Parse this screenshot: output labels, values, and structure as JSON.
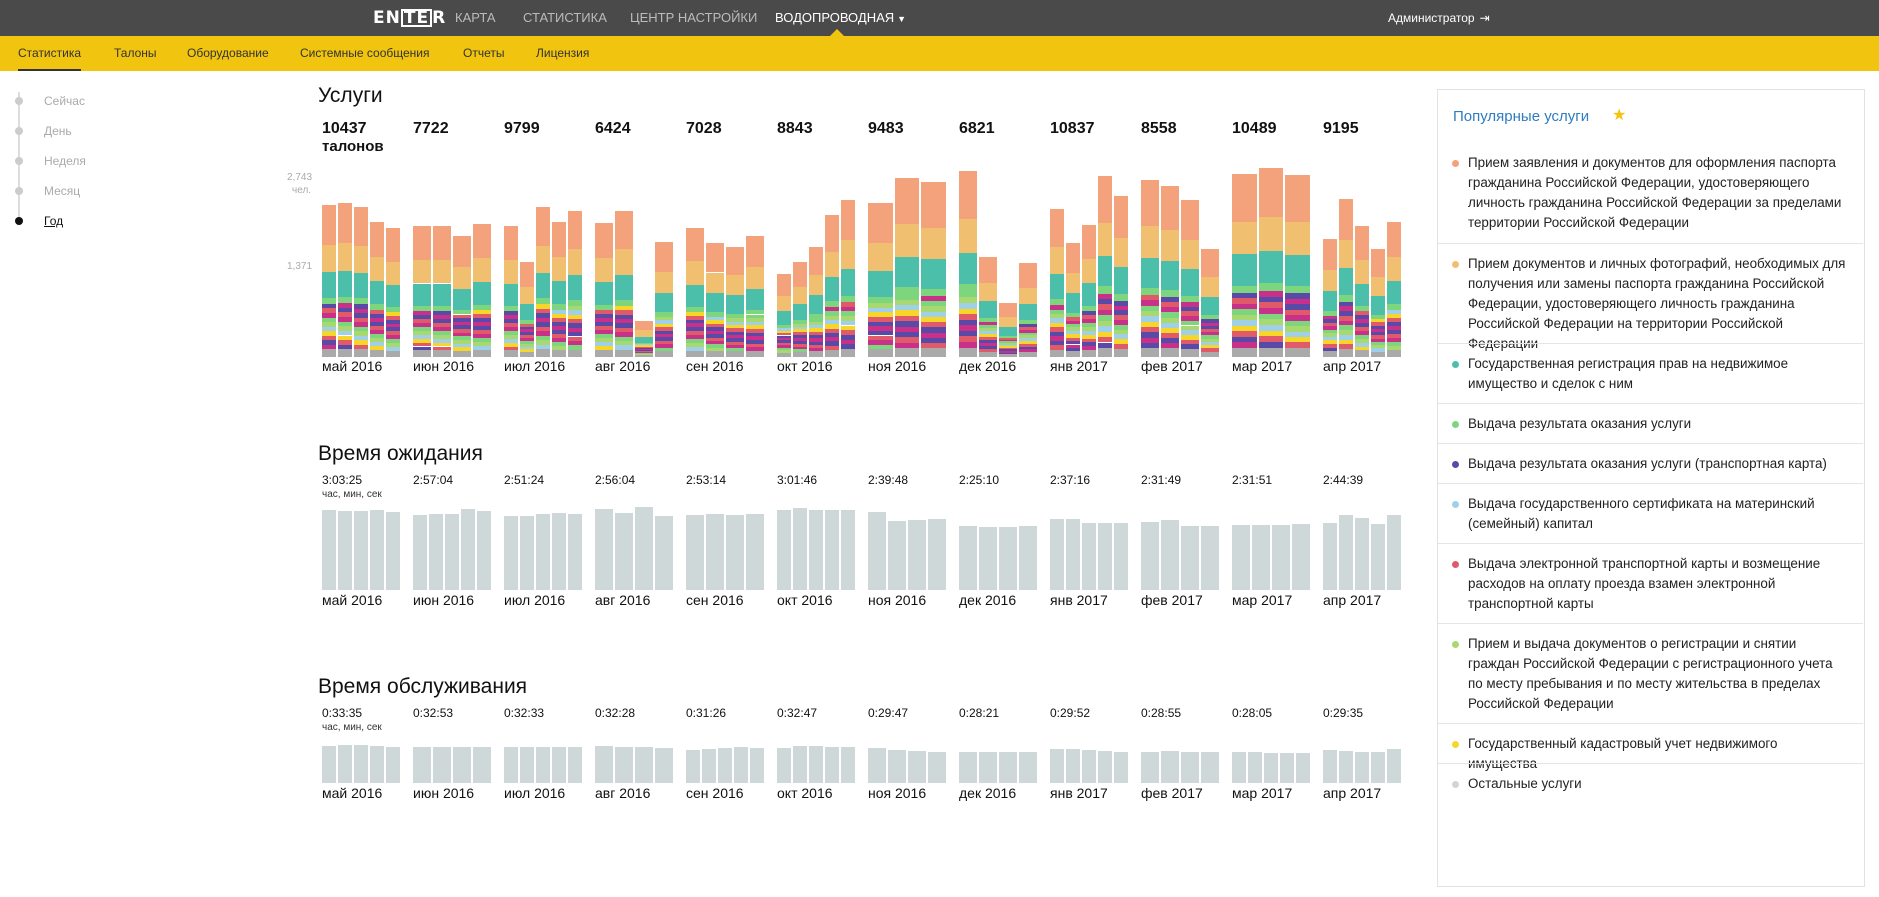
{
  "topnav": {
    "logo": {
      "text": "ENTER",
      "left": "EN",
      "box": "TE",
      "right": "R"
    },
    "items": [
      {
        "label": "КАРТА",
        "active": false
      },
      {
        "label": "СТАТИСТИКА",
        "active": false
      },
      {
        "label": "ЦЕНТР НАСТРОЙКИ",
        "active": false
      },
      {
        "label": "ВОДОПРОВОДНАЯ",
        "active": true,
        "dropdown": true
      }
    ],
    "user": "Администратор",
    "logout_icon": "logout-icon"
  },
  "subnav": {
    "items": [
      {
        "label": "Статистика",
        "active": true
      },
      {
        "label": "Талоны",
        "active": false
      },
      {
        "label": "Оборудование",
        "active": false
      },
      {
        "label": "Системные сообщения",
        "active": false
      },
      {
        "label": "Отчеты",
        "active": false
      },
      {
        "label": "Лицензия",
        "active": false
      }
    ]
  },
  "period": {
    "items": [
      {
        "label": "Сейчас",
        "active": false
      },
      {
        "label": "День",
        "active": false
      },
      {
        "label": "Неделя",
        "active": false
      },
      {
        "label": "Месяц",
        "active": false
      },
      {
        "label": "Год",
        "active": true
      }
    ]
  },
  "months": [
    "май 2016",
    "июн 2016",
    "июл 2016",
    "авг 2016",
    "сен 2016",
    "окт 2016",
    "ноя 2016",
    "дек 2016",
    "янв 2017",
    "фев 2017",
    "мар 2017",
    "апр 2017"
  ],
  "services": {
    "title": "Услуги",
    "totals": [
      "10437",
      "7722",
      "9799",
      "6424",
      "7028",
      "8843",
      "9483",
      "6821",
      "10837",
      "8558",
      "10489",
      "9195"
    ],
    "unit": "талонов",
    "axis": {
      "max_label": "2,743",
      "unit": "чел.",
      "mid_label": "1,371"
    }
  },
  "wait": {
    "title": "Время ожидания",
    "values": [
      "3:03:25",
      "2:57:04",
      "2:51:24",
      "2:56:04",
      "2:53:14",
      "3:01:46",
      "2:39:48",
      "2:25:10",
      "2:37:16",
      "2:31:49",
      "2:31:51",
      "2:44:39"
    ],
    "unit": "час, мин, сек"
  },
  "service_time": {
    "title": "Время обслуживания",
    "values": [
      "0:33:35",
      "0:32:53",
      "0:32:33",
      "0:32:28",
      "0:31:26",
      "0:32:47",
      "0:29:47",
      "0:28:21",
      "0:29:52",
      "0:28:55",
      "0:28:05",
      "0:29:35"
    ],
    "unit": "час, мин, сек"
  },
  "popular": {
    "title": "Популярные услуги",
    "star_icon": "star-icon",
    "items": [
      {
        "color": "#f4a27c",
        "text": "Прием заявления и документов для оформления паспорта гражданина Российской Федерации, удостоверяющего личность гражданина Российской Федерации за пределами территории Российской Федерации"
      },
      {
        "color": "#f0c070",
        "text": "Прием документов и личных фотографий, необходимых для получения или замены паспорта гражданина Российской Федерации, удостоверяющего личность гражданина Российской Федерации на территории Российской Федерации"
      },
      {
        "color": "#4cbfaa",
        "text": "Государственная регистрация прав на недвижимое имущество и сделок с ним"
      },
      {
        "color": "#7dd67d",
        "text": "Выдача результата оказания услуги"
      },
      {
        "color": "#5a4aa8",
        "text": "Выдача результата оказания услуги (транспортная карта)"
      },
      {
        "color": "#9fd0e8",
        "text": "Выдача государственного сертификата на материнский (семейный) капитал"
      },
      {
        "color": "#e05a6a",
        "text": "Выдача электронной транспортной карты и возмещение расходов на оплату проезда взамен электронной транспортной карты"
      },
      {
        "color": "#a8d870",
        "text": "Прием и выдача документов о регистрации и снятии граждан Российской Федерации с регистрационного учета по месту пребывания и по месту жительства в пределах Российской Федерации"
      },
      {
        "color": "#f7d62a",
        "text": "Государственный кадастровый учет недвижимого имущества"
      },
      {
        "color": "#cfd6d6",
        "text": "Остальные услуги"
      }
    ]
  },
  "chart_data": [
    {
      "type": "bar",
      "title": "Услуги",
      "stacked": true,
      "ylim": [
        0,
        2743
      ],
      "categories": [
        "май 2016",
        "июн 2016",
        "июл 2016",
        "авг 2016",
        "сен 2016",
        "окт 2016",
        "ноя 2016",
        "дек 2016",
        "янв 2017",
        "фев 2017",
        "мар 2017",
        "апр 2017"
      ],
      "weekly_totals": [
        [
          2310,
          2340,
          2290,
          2060,
          1960
        ],
        [
          2000,
          2000,
          1850,
          2030
        ],
        [
          1990,
          1450,
          2290,
          2060,
          2230
        ],
        [
          2040,
          2220,
          550,
          1750
        ],
        [
          1970,
          1740,
          1680,
          1850
        ],
        [
          1260,
          1450,
          1680,
          2170,
          2400
        ],
        [
          2340,
          2730,
          2660
        ],
        [
          2840,
          1530,
          820,
          1430
        ],
        [
          2260,
          1730,
          2010,
          2760,
          2450
        ],
        [
          2700,
          2610,
          2400,
          1640
        ],
        [
          2790,
          2880,
          2770
        ],
        [
          1800,
          2410,
          1990,
          1650,
          2060
        ]
      ],
      "segment_shares": [
        0.35,
        0.17,
        0.16,
        0.06,
        0.05,
        0.04,
        0.03,
        0.03,
        0.04,
        0.07
      ],
      "series_colors": [
        "#f4a27c",
        "#f0c070",
        "#4cbfaa",
        "#7dd67d",
        "#5a4aa8",
        "#9fd0e8",
        "#e05a6a",
        "#a8d870",
        "#f7d62a",
        "#c9308a"
      ],
      "other_color": "#aaaaaa"
    },
    {
      "type": "bar",
      "title": "Время ожидания",
      "ylim": [
        0,
        200
      ],
      "categories": [
        "май 2016",
        "июн 2016",
        "июл 2016",
        "авг 2016",
        "сен 2016",
        "окт 2016",
        "ноя 2016",
        "дек 2016",
        "янв 2017",
        "фев 2017",
        "мар 2017",
        "апр 2017"
      ],
      "weekly_minutes": [
        [
          185,
          181,
          181,
          185,
          179
        ],
        [
          172,
          174,
          175,
          186,
          181
        ],
        [
          170,
          171,
          175,
          177,
          175
        ],
        [
          187,
          176,
          191,
          170
        ],
        [
          172,
          174,
          172,
          174
        ],
        [
          183,
          189,
          183,
          183,
          183
        ],
        [
          179,
          158,
          160,
          163
        ],
        [
          146,
          145,
          144,
          146
        ],
        [
          163,
          163,
          155,
          155,
          155
        ],
        [
          157,
          160,
          148,
          146
        ],
        [
          149,
          150,
          149,
          151
        ],
        [
          155,
          172,
          165,
          152,
          172
        ]
      ],
      "color": "#cfd8d8"
    },
    {
      "type": "bar",
      "title": "Время обслуживания",
      "ylim": [
        0,
        40
      ],
      "categories": [
        "май 2016",
        "июн 2016",
        "июл 2016",
        "авг 2016",
        "сен 2016",
        "окт 2016",
        "ноя 2016",
        "дек 2016",
        "янв 2017",
        "фев 2017",
        "мар 2017",
        "апр 2017"
      ],
      "weekly_minutes": [
        [
          34,
          35,
          35,
          34,
          33
        ],
        [
          32.5,
          32.5,
          32.5,
          32.5
        ],
        [
          32.5,
          32.5,
          32.5,
          32.5,
          32.5
        ],
        [
          33.5,
          33,
          32.5,
          31.5
        ],
        [
          30,
          30.5,
          32,
          32.5,
          31.5
        ],
        [
          32,
          33.5,
          33.5,
          33,
          32.5
        ],
        [
          32,
          30,
          29,
          28.5
        ],
        [
          28.5,
          28.5,
          28,
          28
        ],
        [
          30.5,
          30.5,
          30,
          29,
          28.5
        ],
        [
          28.5,
          29.5,
          28.5,
          28
        ],
        [
          28.5,
          28,
          27.5,
          27.5,
          27.5
        ],
        [
          30,
          29,
          28.5,
          28.5,
          31
        ]
      ],
      "color": "#cfd8d8"
    }
  ]
}
